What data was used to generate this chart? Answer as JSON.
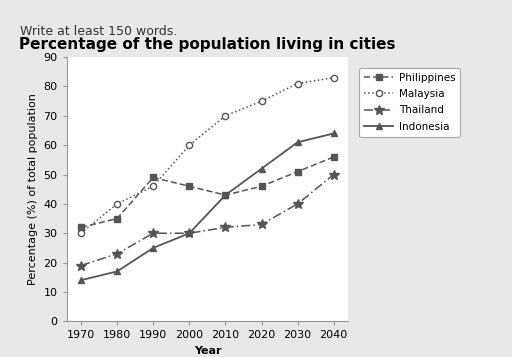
{
  "title": "Percentage of the population living in cities",
  "xlabel": "Year",
  "ylabel": "Percentage (%) of total population",
  "years": [
    1970,
    1980,
    1990,
    2000,
    2010,
    2020,
    2030,
    2040
  ],
  "philippines": [
    32,
    35,
    49,
    46,
    43,
    46,
    51,
    56
  ],
  "malaysia": [
    30,
    40,
    46,
    60,
    70,
    75,
    81,
    83
  ],
  "thailand": [
    19,
    23,
    30,
    30,
    32,
    33,
    40,
    50
  ],
  "indonesia": [
    14,
    17,
    25,
    30,
    43,
    52,
    61,
    64
  ],
  "ylim": [
    0,
    90
  ],
  "yticks": [
    0,
    10,
    20,
    30,
    40,
    50,
    60,
    70,
    80,
    90
  ],
  "color": "#555555",
  "bg_color": "#e8e8e8",
  "plot_bg": "#ffffff",
  "title_fontsize": 11,
  "label_fontsize": 8,
  "tick_fontsize": 8,
  "header_text": "Write at least 150 words.",
  "header_fontsize": 9
}
